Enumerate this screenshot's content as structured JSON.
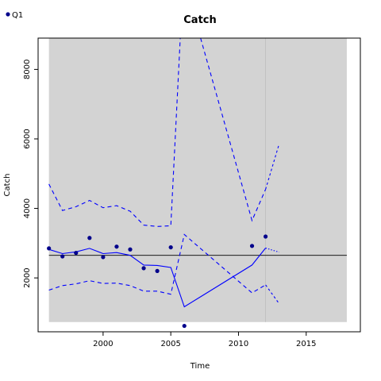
{
  "chart_data": {
    "type": "line",
    "title": "Catch",
    "xlabel": "Time",
    "ylabel": "Catch",
    "xlim": [
      1995.2,
      2019.0
    ],
    "ylim": [
      450,
      8900
    ],
    "x_ticks": [
      2000,
      2005,
      2010,
      2015
    ],
    "y_ticks": [
      2000,
      4000,
      6000,
      8000
    ],
    "grid": false,
    "legend": {
      "position": "top-left",
      "entries": [
        {
          "label": "Q1",
          "color": "#00008B"
        }
      ]
    },
    "background_band": {
      "x": [
        1996,
        2018
      ],
      "y": [
        730,
        8900
      ]
    },
    "reference_line_y": 2650,
    "vertical_line_x": 2012,
    "series": [
      {
        "name": "Q1",
        "kind": "observed",
        "x": [
          1996,
          1997,
          1998,
          1999,
          2000,
          2001,
          2002,
          2003,
          2004,
          2005,
          2006,
          2011,
          2012
        ],
        "values": [
          2850,
          2620,
          2720,
          3150,
          2600,
          2900,
          2820,
          2280,
          2200,
          2880,
          620,
          2920,
          3190
        ]
      },
      {
        "kind": "fitted",
        "x": [
          1996,
          1997,
          1998,
          1999,
          2000,
          2001,
          2002,
          2003,
          2004,
          2005,
          2006,
          2011,
          2012
        ],
        "values": [
          2820,
          2700,
          2750,
          2850,
          2700,
          2730,
          2650,
          2370,
          2360,
          2300,
          1170,
          2370,
          2860
        ]
      },
      {
        "kind": "upper",
        "x": [
          1996,
          1997,
          1998,
          1999,
          2000,
          2001,
          2002,
          2003,
          2004,
          2005,
          2005.7,
          2007.2,
          2011,
          2012
        ],
        "values": [
          4700,
          3940,
          4050,
          4230,
          4020,
          4080,
          3920,
          3520,
          3480,
          3500,
          8900,
          8900,
          3650,
          4550
        ]
      },
      {
        "kind": "lower",
        "x": [
          1996,
          1997,
          1998,
          1999,
          2000,
          2001,
          2002,
          2003,
          2004,
          2005,
          2006,
          2011,
          2012
        ],
        "values": [
          1650,
          1780,
          1830,
          1920,
          1840,
          1850,
          1780,
          1620,
          1620,
          1530,
          3250,
          1570,
          1800
        ]
      },
      {
        "kind": "forecast",
        "x": [
          2012,
          2013
        ],
        "values": [
          2860,
          2740
        ]
      },
      {
        "kind": "forecast-upper",
        "x": [
          2012,
          2013
        ],
        "values": [
          4550,
          5850
        ]
      },
      {
        "kind": "forecast-lower",
        "x": [
          2012,
          2013
        ],
        "values": [
          1800,
          1260
        ]
      }
    ],
    "colors": {
      "band": "#D3D3D3",
      "line": "#0000FF",
      "point": "#00008B",
      "reference": "#000000",
      "vertical": "#BDBDBD"
    }
  }
}
